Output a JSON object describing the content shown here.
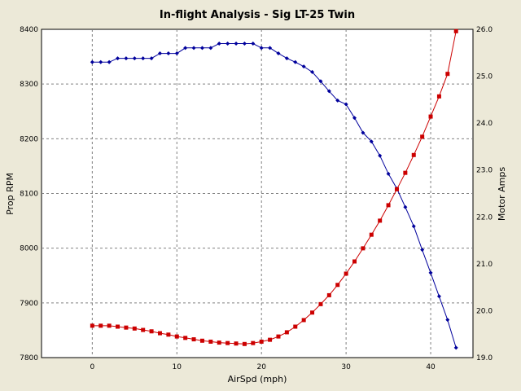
{
  "chart_data": {
    "type": "line",
    "title": "In-flight Analysis - Sig LT-25 Twin",
    "xlabel": "AirSpd (mph)",
    "ylabel_left": "Prop RPM",
    "ylabel_right": "Motor Amps",
    "xlim": [
      -6,
      45
    ],
    "ylim_left": [
      7800,
      8400
    ],
    "ylim_right": [
      19.0,
      26.0
    ],
    "x_ticks": [
      "0",
      "10",
      "20",
      "30",
      "40"
    ],
    "y_ticks_left": [
      "7800",
      "7900",
      "8000",
      "8100",
      "8200",
      "8300",
      "8400"
    ],
    "y_ticks_right": [
      "19.0",
      "20.0",
      "21.0",
      "22.0",
      "23.0",
      "24.0",
      "25.0",
      "26.0"
    ],
    "grid": true,
    "series": [
      {
        "axis": "left",
        "color": "#00009c",
        "marker": "diamond",
        "x": [
          0,
          1,
          2,
          3,
          4,
          5,
          6,
          7,
          8,
          9,
          10,
          11,
          12,
          13,
          14,
          15,
          16,
          17,
          18,
          19,
          20,
          21,
          22,
          23,
          24,
          25,
          26,
          27,
          28,
          29,
          30,
          31,
          32,
          33,
          34,
          35,
          36,
          37,
          38,
          39,
          40,
          41,
          42,
          43
        ],
        "values": [
          8340,
          8340,
          8340,
          8347,
          8347,
          8347,
          8347,
          8347,
          8356,
          8356,
          8356,
          8366,
          8366,
          8366,
          8366,
          8374,
          8374,
          8374,
          8374,
          8374,
          8366,
          8366,
          8356,
          8347,
          8340,
          8332,
          8322,
          8305,
          8287,
          8270,
          8263,
          8238,
          8211,
          8195,
          8169,
          8136,
          8109,
          8075,
          8040,
          7997,
          7955,
          7912,
          7869,
          7818
        ]
      },
      {
        "axis": "right",
        "color": "#cc0000",
        "marker": "square",
        "x": [
          0,
          1,
          2,
          3,
          4,
          5,
          6,
          7,
          8,
          9,
          10,
          11,
          12,
          13,
          14,
          15,
          16,
          17,
          18,
          19,
          20,
          21,
          22,
          23,
          24,
          25,
          26,
          27,
          28,
          29,
          30,
          31,
          32,
          33,
          34,
          35,
          36,
          37,
          38,
          39,
          40,
          41,
          42,
          43
        ],
        "values": [
          19.68,
          19.68,
          19.68,
          19.66,
          19.64,
          19.62,
          19.59,
          19.56,
          19.52,
          19.49,
          19.45,
          19.42,
          19.39,
          19.36,
          19.34,
          19.32,
          19.31,
          19.3,
          19.29,
          19.31,
          19.34,
          19.38,
          19.45,
          19.54,
          19.66,
          19.8,
          19.96,
          20.14,
          20.33,
          20.55,
          20.79,
          21.05,
          21.33,
          21.62,
          21.92,
          22.25,
          22.59,
          22.94,
          23.32,
          23.71,
          24.14,
          24.57,
          25.05,
          25.96
        ]
      }
    ]
  }
}
